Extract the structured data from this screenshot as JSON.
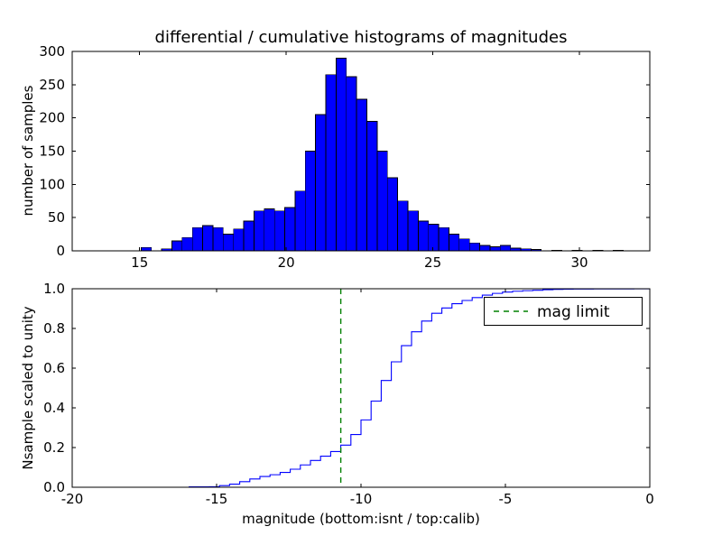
{
  "figure": {
    "background": "#ffffff"
  },
  "chart_data": [
    {
      "type": "bar",
      "subtype": "histogram",
      "title": "differential / cumulative histograms of magnitudes",
      "xlabel": "",
      "ylabel": "number of samples",
      "xlim": [
        12.7,
        32.4
      ],
      "ylim": [
        0,
        300
      ],
      "xticks": [
        15,
        20,
        25,
        30
      ],
      "yticks": [
        0,
        50,
        100,
        150,
        200,
        250,
        300
      ],
      "grid": false,
      "bar_color": "#0000ff",
      "bar_edge_color": "#000000",
      "bin_start": 14.7,
      "bin_width": 0.35,
      "counts": [
        0,
        5,
        0,
        3,
        15,
        20,
        35,
        38,
        35,
        25,
        33,
        45,
        60,
        63,
        60,
        65,
        90,
        150,
        205,
        265,
        290,
        262,
        228,
        195,
        150,
        110,
        75,
        60,
        45,
        40,
        35,
        25,
        18,
        12,
        8,
        6,
        8,
        4,
        3,
        2,
        0,
        1,
        0,
        1,
        0,
        1,
        0,
        1
      ]
    },
    {
      "type": "line",
      "subtype": "cumulative-step",
      "title": "",
      "xlabel": "magnitude (bottom:isnt / top:calib)",
      "ylabel": "Nsample scaled to unity",
      "xlim": [
        -20,
        0
      ],
      "ylim": [
        0.0,
        1.0
      ],
      "xticks": [
        -20,
        -15,
        -10,
        -5,
        0
      ],
      "yticks": [
        0.0,
        0.2,
        0.4,
        0.6,
        0.8,
        1.0
      ],
      "grid": false,
      "line_color": "#0000ff",
      "x_offset_from_top": -31.0,
      "normalized_total": 1.0,
      "mag_limit": -10.7,
      "mag_limit_color": "#008000",
      "mag_limit_style": "dashed",
      "legend": [
        "mag limit"
      ],
      "legend_position": "upper right"
    }
  ]
}
